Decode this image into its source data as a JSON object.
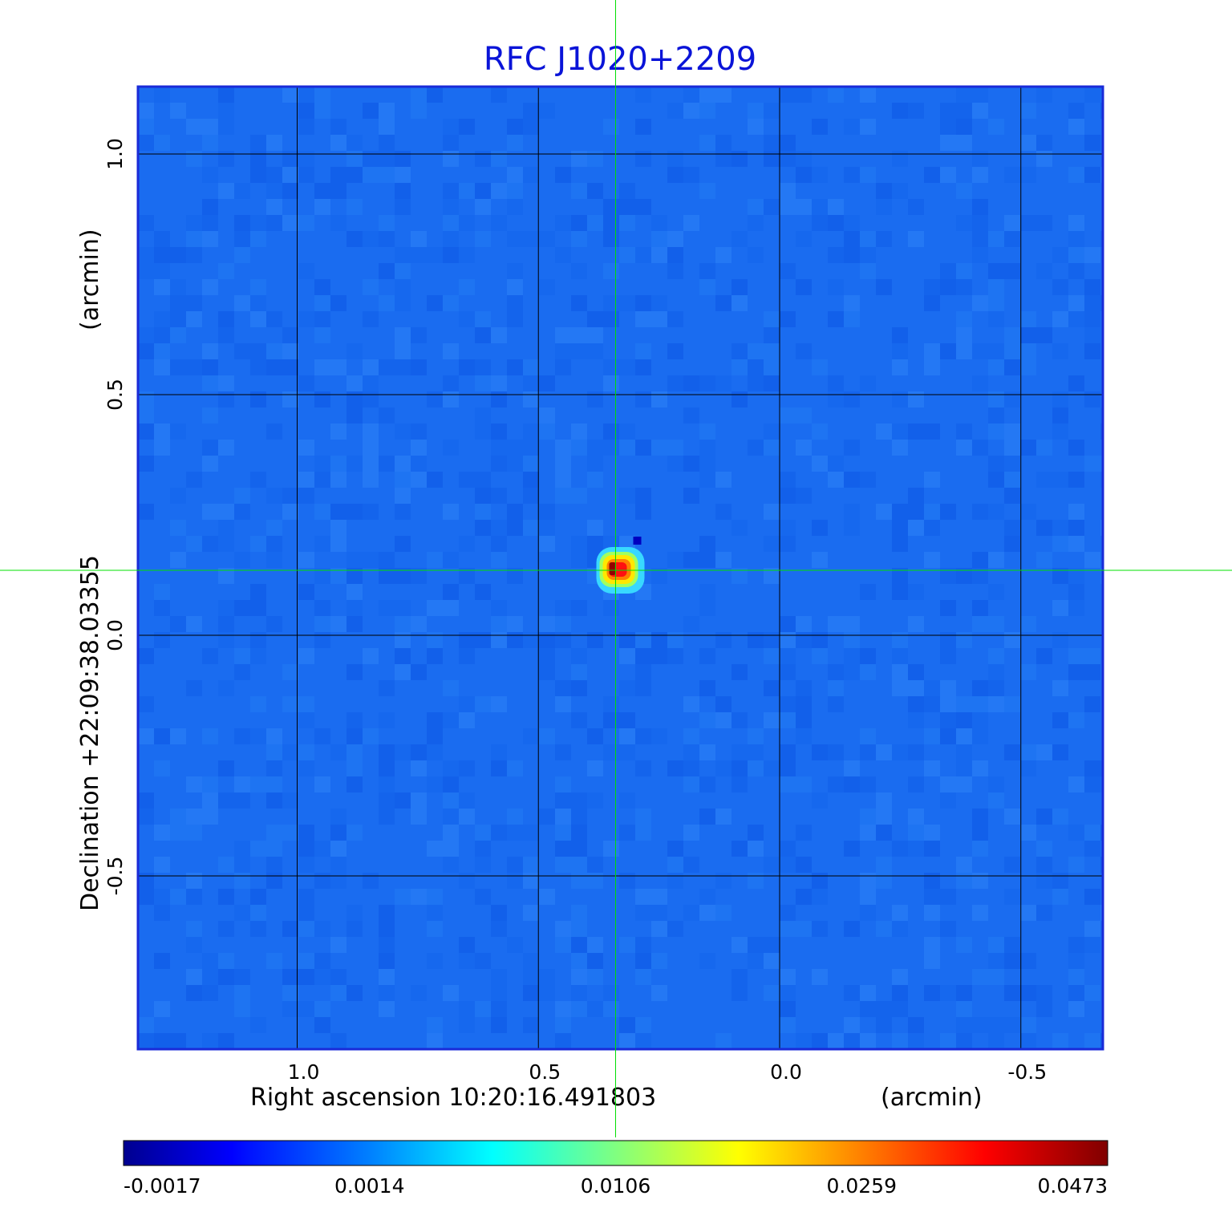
{
  "chart_data": {
    "type": "heatmap",
    "title": "RFC J1020+2209",
    "xlabel": "Right ascension  10:20:16.491803",
    "xunit": "(arcmin)",
    "ylabel": "Declination  +22:09:38.03355",
    "yunit": "(arcmin)",
    "xlim": [
      1.33,
      -0.67
    ],
    "ylim": [
      -0.86,
      1.14
    ],
    "xticks": [
      1.0,
      0.5,
      0.0,
      -0.5
    ],
    "xtick_labels": [
      "1.0",
      "0.5",
      "0.0",
      "-0.5"
    ],
    "yticks": [
      1.0,
      0.5,
      0.0,
      -0.5
    ],
    "ytick_labels": [
      "1.0",
      "0.5",
      "0.0",
      "-0.5"
    ],
    "grid": true,
    "crosshair": {
      "x": 0.34,
      "y": 0.135,
      "color": "#00e000"
    },
    "source": {
      "x": 0.33,
      "y": 0.135,
      "peak": 0.0473
    },
    "colormap": "jet",
    "colorbar": {
      "ticks": [
        -0.0017,
        0.0014,
        0.0106,
        0.0259,
        0.0473
      ],
      "tick_labels": [
        "-0.0017",
        "0.0014",
        "0.0106",
        "0.0259",
        "0.0473"
      ],
      "placement": "bottom"
    },
    "colors": {
      "background": "#1a6cf0",
      "title": "#0a14d8",
      "frame": "#1a2bd8",
      "grid": "#000000"
    }
  }
}
